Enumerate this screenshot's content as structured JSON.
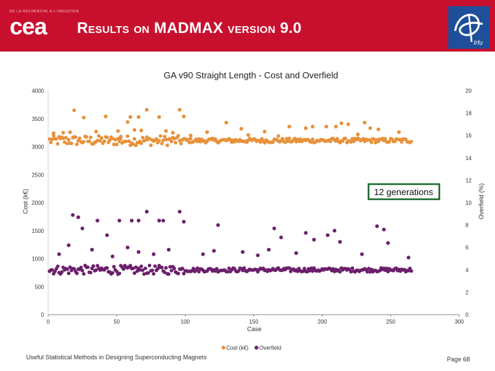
{
  "header": {
    "org_tagline": "DE LA RECHERCHE À L'INDUSTRIE",
    "logo_text": "cea",
    "title": "Results on MADMAX version 9.0",
    "right_logo_text": "Irfu"
  },
  "colors": {
    "header_bg": "#c8102e",
    "cost_series": "#e8913a",
    "overfield_series": "#6b1f6b",
    "callout_border": "#1e6b2e"
  },
  "footer": {
    "left": "Useful Statistical Methods in Designing Superconducting Magnets",
    "right": "Page 68"
  },
  "chart_data": {
    "type": "scatter",
    "title": "GA v90 Straight Length - Cost and Overfield",
    "xlabel": "Case",
    "ylabel": "Cost (k€)",
    "y2label": "Overfield (%)",
    "xlim": [
      0,
      300
    ],
    "ylim": [
      0,
      4000
    ],
    "y2lim": [
      0,
      20
    ],
    "x_ticks": [
      0,
      50,
      100,
      150,
      200,
      250,
      300
    ],
    "y_ticks": [
      0,
      500,
      1000,
      1500,
      2000,
      2500,
      3000,
      3500,
      4000
    ],
    "y2_ticks": [
      0,
      2,
      4,
      6,
      8,
      10,
      12,
      14,
      16,
      18,
      20
    ],
    "grid": false,
    "legend": "bottom",
    "annotation": "12 generations",
    "series": [
      {
        "name": "Cost (k€)",
        "axis": "left",
        "color": "#e8913a",
        "baseline": 3110,
        "points": [
          [
            19,
            3650
          ],
          [
            26,
            3520
          ],
          [
            42,
            3540
          ],
          [
            58,
            3440
          ],
          [
            60,
            3530
          ],
          [
            66,
            3530
          ],
          [
            72,
            3660
          ],
          [
            81,
            3530
          ],
          [
            96,
            3660
          ],
          [
            99,
            3540
          ],
          [
            130,
            3430
          ],
          [
            141,
            3320
          ],
          [
            176,
            3360
          ],
          [
            188,
            3330
          ],
          [
            193,
            3360
          ],
          [
            210,
            3360
          ],
          [
            214,
            3420
          ],
          [
            219,
            3400
          ],
          [
            231,
            3430
          ],
          [
            235,
            3330
          ],
          [
            241,
            3310
          ],
          [
            256,
            3260
          ],
          [
            203,
            3360
          ],
          [
            158,
            3270
          ],
          [
            116,
            3260
          ],
          [
            4,
            3240
          ],
          [
            11,
            3250
          ],
          [
            16,
            3260
          ],
          [
            35,
            3270
          ],
          [
            51,
            3280
          ],
          [
            53,
            3180
          ],
          [
            63,
            3300
          ],
          [
            68,
            3290
          ],
          [
            86,
            3280
          ],
          [
            91,
            3250
          ],
          [
            104,
            3200
          ],
          [
            146,
            3210
          ],
          [
            168,
            3190
          ],
          [
            226,
            3220
          ]
        ]
      },
      {
        "name": "Overfield",
        "axis": "right",
        "color": "#6b1f6b",
        "baseline": 4.0,
        "points": [
          [
            18,
            8.9
          ],
          [
            22,
            8.7
          ],
          [
            25,
            7.7
          ],
          [
            36,
            8.4
          ],
          [
            43,
            7.1
          ],
          [
            52,
            8.4
          ],
          [
            61,
            8.4
          ],
          [
            66,
            8.4
          ],
          [
            72,
            9.2
          ],
          [
            81,
            8.4
          ],
          [
            84,
            8.4
          ],
          [
            96,
            9.2
          ],
          [
            99,
            8.3
          ],
          [
            124,
            8.0
          ],
          [
            165,
            7.7
          ],
          [
            170,
            6.9
          ],
          [
            188,
            7.3
          ],
          [
            194,
            6.7
          ],
          [
            209,
            7.5
          ],
          [
            213,
            6.5
          ],
          [
            240,
            7.9
          ],
          [
            245,
            7.6
          ],
          [
            248,
            6.4
          ],
          [
            204,
            7.1
          ],
          [
            15,
            6.2
          ],
          [
            32,
            5.8
          ],
          [
            47,
            5.2
          ],
          [
            58,
            6.0
          ],
          [
            66,
            5.6
          ],
          [
            77,
            5.4
          ],
          [
            88,
            5.8
          ],
          [
            113,
            5.4
          ],
          [
            121,
            5.7
          ],
          [
            142,
            5.6
          ],
          [
            153,
            5.3
          ],
          [
            161,
            5.8
          ],
          [
            181,
            5.5
          ],
          [
            229,
            5.4
          ],
          [
            263,
            5.1
          ],
          [
            8,
            5.4
          ]
        ]
      }
    ]
  }
}
